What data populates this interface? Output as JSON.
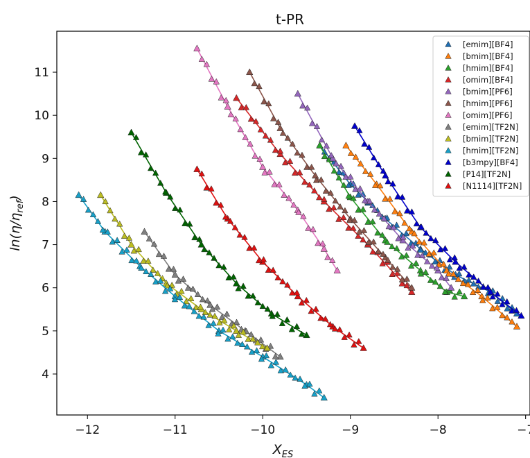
{
  "chart_data": {
    "type": "scatter",
    "title": "t-PR",
    "xlabel_main": "X",
    "xlabel_sub": "ES",
    "ylabel_parts": [
      "ln(η/η",
      "ref",
      ")"
    ],
    "xlim": [
      -12.35,
      -6.95
    ],
    "ylim": [
      3.05,
      11.95
    ],
    "x_ticks": [
      -12,
      -11,
      -10,
      -9,
      -8,
      -7
    ],
    "x_tick_labels": [
      "−12",
      "−11",
      "−10",
      "−9",
      "−8",
      "−7"
    ],
    "y_ticks": [
      4,
      5,
      6,
      7,
      8,
      9,
      10,
      11
    ],
    "y_tick_labels": [
      "4",
      "5",
      "6",
      "7",
      "8",
      "9",
      "10",
      "11"
    ],
    "marker": "triangle",
    "fit_lines": true,
    "legend_position": "top-right",
    "series": [
      {
        "name": "[emim][BF4]",
        "color": "#1f6fb4",
        "x": [
          -9.35,
          -9.0,
          -8.6,
          -8.2,
          -7.8,
          -7.4,
          -7.1
        ],
        "y": [
          9.3,
          8.4,
          7.6,
          6.9,
          6.3,
          5.9,
          5.4
        ]
      },
      {
        "name": "[bmim][BF4]",
        "color": "#ff7f0e",
        "x": [
          -9.05,
          -8.7,
          -8.3,
          -7.9,
          -7.5,
          -7.1
        ],
        "y": [
          9.3,
          8.4,
          7.3,
          6.4,
          5.8,
          5.1
        ]
      },
      {
        "name": "[hmim][BF4]",
        "color": "#2ca02c",
        "x": [
          -9.35,
          -9.0,
          -8.6,
          -8.2,
          -7.9,
          -7.7
        ],
        "y": [
          9.3,
          8.1,
          7.1,
          6.4,
          5.9,
          5.8
        ]
      },
      {
        "name": "[omim][BF4]",
        "color": "#d62728",
        "x": [
          -10.3,
          -9.8,
          -9.3,
          -8.8,
          -8.3
        ],
        "y": [
          10.4,
          9.1,
          8.0,
          7.0,
          5.9
        ]
      },
      {
        "name": "[bmim][PF6]",
        "color": "#9467bd",
        "x": [
          -9.6,
          -9.2,
          -8.8,
          -8.4,
          -8.0,
          -7.85
        ],
        "y": [
          10.5,
          9.0,
          8.0,
          7.1,
          6.4,
          6.0
        ]
      },
      {
        "name": "[hmim][PF6]",
        "color": "#8c564b",
        "x": [
          -10.15,
          -9.8,
          -9.4,
          -9.0,
          -8.6,
          -8.3
        ],
        "y": [
          11.0,
          9.7,
          8.6,
          7.6,
          6.7,
          6.0
        ]
      },
      {
        "name": "[omim][PF6]",
        "color": "#e377c2",
        "x": [
          -10.75,
          -10.4,
          -10.0,
          -9.6,
          -9.3,
          -9.15
        ],
        "y": [
          11.55,
          10.2,
          8.8,
          7.8,
          6.9,
          6.4
        ]
      },
      {
        "name": "[emim][TF2N]",
        "color": "#7f7f7f",
        "x": [
          -11.35,
          -11.0,
          -10.6,
          -10.2,
          -9.8
        ],
        "y": [
          7.3,
          6.3,
          5.6,
          5.0,
          4.4
        ]
      },
      {
        "name": "[bmim][TF2N]",
        "color": "#bcbd22",
        "x": [
          -11.85,
          -11.5,
          -11.1,
          -10.7,
          -10.3,
          -9.95
        ],
        "y": [
          8.15,
          7.0,
          6.1,
          5.5,
          5.0,
          4.6
        ]
      },
      {
        "name": "[hmim][TF2N]",
        "color": "#17a0c8",
        "x": [
          -12.1,
          -11.8,
          -11.4,
          -11.0,
          -10.5,
          -10.0,
          -9.5,
          -9.3
        ],
        "y": [
          8.15,
          7.3,
          6.5,
          5.8,
          5.0,
          4.4,
          3.75,
          3.45
        ]
      },
      {
        "name": "[b3mpy][BF4]",
        "color": "#0000cc",
        "x": [
          -8.95,
          -8.6,
          -8.2,
          -7.8,
          -7.4,
          -7.05
        ],
        "y": [
          9.75,
          8.6,
          7.4,
          6.6,
          5.9,
          5.35
        ]
      },
      {
        "name": "[P14][TF2N]",
        "color": "#006400",
        "x": [
          -11.5,
          -11.1,
          -10.7,
          -10.3,
          -9.9,
          -9.5
        ],
        "y": [
          9.6,
          8.2,
          7.0,
          6.1,
          5.4,
          4.9
        ]
      },
      {
        "name": "[N1114][TF2N]",
        "color": "#e01010",
        "x": [
          -10.75,
          -10.4,
          -10.0,
          -9.6,
          -9.2,
          -8.85
        ],
        "y": [
          8.75,
          7.6,
          6.6,
          5.8,
          5.1,
          4.6
        ]
      }
    ]
  }
}
